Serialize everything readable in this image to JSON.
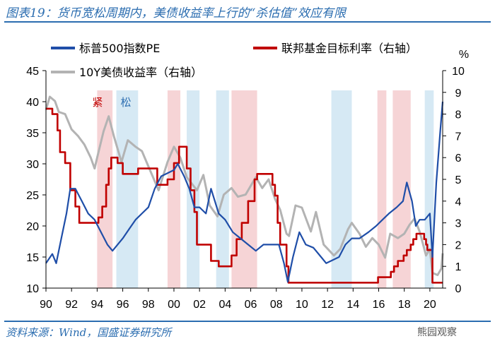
{
  "title": "图表19：货币宽松周期内，美债收益率上行的“杀估值”效应有限",
  "source": "资料来源：Wind，国盛证券研究所",
  "watermark": "熊园观察",
  "colors": {
    "pe": "#1f4ea8",
    "fed": "#c00000",
    "y10": "#b3b3b3",
    "tight": "#f4c9cc",
    "loose": "#cce4f1",
    "accent": "#2b6db0"
  },
  "chart_data": {
    "type": "line",
    "title": "",
    "x_range": [
      1990,
      2021
    ],
    "x_tick_values": [
      1990,
      1992,
      1994,
      1996,
      1998,
      2000,
      2002,
      2004,
      2006,
      2008,
      2010,
      2012,
      2014,
      2016,
      2018,
      2020
    ],
    "x_tick_labels": [
      "90",
      "92",
      "94",
      "96",
      "98",
      "00",
      "02",
      "04",
      "06",
      "08",
      "10",
      "12",
      "14",
      "16",
      "18",
      "20"
    ],
    "y_left": {
      "range": [
        10,
        45
      ],
      "ticks": [
        "10",
        "15",
        "20",
        "25",
        "30",
        "35",
        "40",
        "45"
      ]
    },
    "y_right": {
      "unit": "%",
      "range": [
        0,
        10
      ],
      "ticks": [
        "0",
        "1",
        "2",
        "3",
        "4",
        "5",
        "6",
        "7",
        "8",
        "9",
        "10"
      ]
    },
    "period_labels": {
      "tight": "紧",
      "loose": "松"
    },
    "tight_periods": [
      [
        1994.0,
        1995.2
      ],
      [
        1999.5,
        2000.5
      ],
      [
        2004.5,
        2006.5
      ],
      [
        2015.9,
        2016.6
      ],
      [
        2017.1,
        2018.5
      ]
    ],
    "loose_periods": [
      [
        1995.5,
        1997.2
      ],
      [
        2001.0,
        2002.0
      ],
      [
        2003.3,
        2004.3
      ],
      [
        2012.3,
        2013.9
      ],
      [
        2019.6,
        2020.3
      ]
    ],
    "legend": [
      {
        "key": "pe",
        "label": "标普500指数PE"
      },
      {
        "key": "fed",
        "label": "联邦基金目标利率（右轴）"
      },
      {
        "key": "y10",
        "label": "10Y美债收益率（右轴）"
      }
    ],
    "series": [
      {
        "key": "pe",
        "name": "标普500指数PE",
        "axis": "left",
        "points": [
          [
            1990.0,
            14
          ],
          [
            1990.5,
            15.5
          ],
          [
            1990.8,
            14
          ],
          [
            1991.2,
            18
          ],
          [
            1991.6,
            22
          ],
          [
            1991.9,
            26
          ],
          [
            1992.3,
            26
          ],
          [
            1992.8,
            24
          ],
          [
            1993.3,
            22
          ],
          [
            1993.8,
            21
          ],
          [
            1994.3,
            19
          ],
          [
            1994.8,
            17
          ],
          [
            1995.2,
            16
          ],
          [
            1995.6,
            17
          ],
          [
            1996.0,
            18
          ],
          [
            1996.5,
            19.5
          ],
          [
            1997.0,
            21
          ],
          [
            1997.5,
            22
          ],
          [
            1998.0,
            23
          ],
          [
            1998.5,
            26
          ],
          [
            1999.0,
            28
          ],
          [
            1999.5,
            28.5
          ],
          [
            2000.0,
            29
          ],
          [
            2000.3,
            30
          ],
          [
            2000.8,
            28
          ],
          [
            2001.2,
            26
          ],
          [
            2001.6,
            23
          ],
          [
            2002.0,
            23
          ],
          [
            2002.5,
            22
          ],
          [
            2002.9,
            26
          ],
          [
            2003.5,
            22
          ],
          [
            2004.0,
            21
          ],
          [
            2004.6,
            19
          ],
          [
            2005.2,
            18
          ],
          [
            2005.8,
            17
          ],
          [
            2006.4,
            16
          ],
          [
            2007.0,
            17
          ],
          [
            2007.6,
            17
          ],
          [
            2008.2,
            17
          ],
          [
            2008.6,
            14
          ],
          [
            2008.9,
            11
          ],
          [
            2009.3,
            15
          ],
          [
            2009.8,
            19
          ],
          [
            2010.3,
            17
          ],
          [
            2010.9,
            16.5
          ],
          [
            2011.5,
            15
          ],
          [
            2011.9,
            14
          ],
          [
            2012.4,
            14.5
          ],
          [
            2012.9,
            15
          ],
          [
            2013.4,
            17
          ],
          [
            2013.9,
            18
          ],
          [
            2014.5,
            18
          ],
          [
            2015.2,
            19
          ],
          [
            2015.8,
            20
          ],
          [
            2016.3,
            21
          ],
          [
            2016.8,
            22
          ],
          [
            2017.4,
            23
          ],
          [
            2017.9,
            24
          ],
          [
            2018.2,
            27
          ],
          [
            2018.6,
            24
          ],
          [
            2018.9,
            20
          ],
          [
            2019.2,
            21
          ],
          [
            2019.6,
            21
          ],
          [
            2020.0,
            22
          ],
          [
            2020.2,
            15
          ],
          [
            2020.5,
            27
          ],
          [
            2020.8,
            35
          ],
          [
            2021.0,
            40
          ]
        ]
      },
      {
        "key": "fed",
        "name": "联邦基金目标利率（右轴）",
        "axis": "right",
        "step": true,
        "points": [
          [
            1990.0,
            8.25
          ],
          [
            1990.5,
            8.0
          ],
          [
            1990.9,
            7.25
          ],
          [
            1991.1,
            6.25
          ],
          [
            1991.5,
            5.75
          ],
          [
            1991.9,
            4.5
          ],
          [
            1992.3,
            3.75
          ],
          [
            1992.6,
            3.0
          ],
          [
            1994.1,
            3.25
          ],
          [
            1994.4,
            3.75
          ],
          [
            1994.7,
            4.75
          ],
          [
            1994.9,
            5.5
          ],
          [
            1995.1,
            6.0
          ],
          [
            1995.6,
            5.75
          ],
          [
            1996.0,
            5.25
          ],
          [
            1997.2,
            5.5
          ],
          [
            1998.7,
            4.75
          ],
          [
            1999.5,
            5.0
          ],
          [
            2000.0,
            5.75
          ],
          [
            2000.4,
            6.5
          ],
          [
            2001.0,
            5.5
          ],
          [
            2001.3,
            4.5
          ],
          [
            2001.6,
            3.5
          ],
          [
            2001.8,
            2.0
          ],
          [
            2002.9,
            1.25
          ],
          [
            2003.5,
            1.0
          ],
          [
            2004.5,
            1.5
          ],
          [
            2004.9,
            2.25
          ],
          [
            2005.3,
            3.0
          ],
          [
            2005.8,
            4.0
          ],
          [
            2006.3,
            5.0
          ],
          [
            2006.5,
            5.25
          ],
          [
            2007.7,
            4.75
          ],
          [
            2007.9,
            4.25
          ],
          [
            2008.1,
            3.0
          ],
          [
            2008.3,
            2.0
          ],
          [
            2008.8,
            1.0
          ],
          [
            2008.95,
            0.25
          ],
          [
            2015.95,
            0.5
          ],
          [
            2016.95,
            0.75
          ],
          [
            2017.2,
            1.0
          ],
          [
            2017.5,
            1.25
          ],
          [
            2017.95,
            1.5
          ],
          [
            2018.2,
            1.75
          ],
          [
            2018.5,
            2.0
          ],
          [
            2018.7,
            2.25
          ],
          [
            2018.95,
            2.5
          ],
          [
            2019.55,
            2.25
          ],
          [
            2019.7,
            2.0
          ],
          [
            2019.8,
            1.75
          ],
          [
            2020.2,
            0.25
          ],
          [
            2021.0,
            0.25
          ]
        ]
      },
      {
        "key": "y10",
        "name": "10Y美债收益率（右轴）",
        "axis": "right",
        "points": [
          [
            1990.0,
            8.2
          ],
          [
            1990.3,
            8.8
          ],
          [
            1990.7,
            8.6
          ],
          [
            1991.0,
            8.1
          ],
          [
            1991.5,
            8.0
          ],
          [
            1992.0,
            7.3
          ],
          [
            1992.5,
            7.0
          ],
          [
            1993.0,
            6.6
          ],
          [
            1993.5,
            6.0
          ],
          [
            1993.8,
            5.5
          ],
          [
            1994.0,
            6.0
          ],
          [
            1994.5,
            7.2
          ],
          [
            1994.9,
            7.9
          ],
          [
            1995.3,
            7.0
          ],
          [
            1995.9,
            5.8
          ],
          [
            1996.4,
            6.8
          ],
          [
            1997.0,
            6.5
          ],
          [
            1997.5,
            6.3
          ],
          [
            1998.0,
            5.6
          ],
          [
            1998.8,
            4.5
          ],
          [
            1999.5,
            5.8
          ],
          [
            2000.0,
            6.5
          ],
          [
            2000.5,
            6.0
          ],
          [
            2001.0,
            5.1
          ],
          [
            2001.8,
            4.5
          ],
          [
            2002.3,
            5.2
          ],
          [
            2002.8,
            3.8
          ],
          [
            2003.4,
            3.3
          ],
          [
            2003.9,
            4.3
          ],
          [
            2004.5,
            4.6
          ],
          [
            2005.0,
            4.2
          ],
          [
            2005.6,
            4.3
          ],
          [
            2006.4,
            5.1
          ],
          [
            2006.9,
            4.6
          ],
          [
            2007.4,
            5.0
          ],
          [
            2007.9,
            4.1
          ],
          [
            2008.3,
            3.6
          ],
          [
            2008.8,
            2.5
          ],
          [
            2009.0,
            2.4
          ],
          [
            2009.5,
            3.8
          ],
          [
            2010.0,
            3.7
          ],
          [
            2010.7,
            2.6
          ],
          [
            2011.1,
            3.5
          ],
          [
            2011.7,
            2.0
          ],
          [
            2012.5,
            1.5
          ],
          [
            2013.0,
            1.8
          ],
          [
            2013.6,
            2.7
          ],
          [
            2013.9,
            3.0
          ],
          [
            2014.5,
            2.5
          ],
          [
            2015.0,
            1.9
          ],
          [
            2015.5,
            2.3
          ],
          [
            2016.0,
            2.0
          ],
          [
            2016.5,
            1.4
          ],
          [
            2016.9,
            2.5
          ],
          [
            2017.5,
            2.3
          ],
          [
            2018.0,
            2.5
          ],
          [
            2018.4,
            2.9
          ],
          [
            2018.8,
            3.2
          ],
          [
            2019.2,
            2.6
          ],
          [
            2019.7,
            1.5
          ],
          [
            2020.0,
            1.8
          ],
          [
            2020.2,
            0.7
          ],
          [
            2020.6,
            0.6
          ],
          [
            2020.9,
            0.9
          ],
          [
            2021.0,
            1.6
          ]
        ]
      }
    ]
  }
}
